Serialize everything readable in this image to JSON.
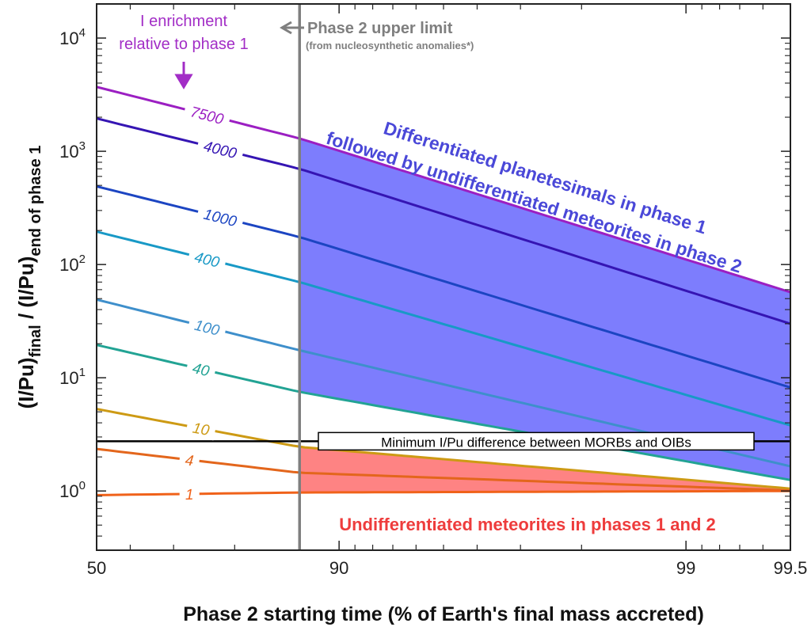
{
  "chart_data": {
    "type": "line",
    "title": "",
    "xlabel": "Phase 2 starting time (% of Earth's final mass accreted)",
    "ylabel_main": "(I/Pu)",
    "ylabel_sub1": "final",
    "ylabel_mid": " / (I/Pu)",
    "ylabel_sub2": "end of phase 1",
    "x_scale": "reciprocal (1 - x/100)",
    "xlim": [
      50,
      99.5
    ],
    "y_scale": "log",
    "ylim": [
      0.3,
      20000
    ],
    "x_ticks": [
      {
        "value": 50,
        "label": "50"
      },
      {
        "value": 90,
        "label": "90"
      },
      {
        "value": 99,
        "label": "99"
      },
      {
        "value": 99.5,
        "label": "99.5"
      }
    ],
    "x_minor_ticks": [
      60,
      70,
      80,
      91,
      92,
      93,
      94,
      95,
      96,
      97,
      98,
      99.1,
      99.2,
      99.3,
      99.4
    ],
    "y_ticks": [
      {
        "value": 1,
        "base": "10",
        "exp": "0"
      },
      {
        "value": 10,
        "base": "10",
        "exp": "1"
      },
      {
        "value": 100,
        "base": "10",
        "exp": "2"
      },
      {
        "value": 1000,
        "base": "10",
        "exp": "3"
      },
      {
        "value": 10000,
        "base": "10",
        "exp": "4"
      }
    ],
    "series": [
      {
        "name": "7500",
        "color": "#9b1fc2",
        "label_at": 76,
        "points": [
          [
            50,
            3700
          ],
          [
            87,
            1300
          ],
          [
            99.5,
            57
          ]
        ]
      },
      {
        "name": "4000",
        "color": "#3515b3",
        "label_at": 78,
        "points": [
          [
            50,
            1950
          ],
          [
            87,
            700
          ],
          [
            99.5,
            30
          ]
        ]
      },
      {
        "name": "1000",
        "color": "#1c45c2",
        "label_at": 78,
        "points": [
          [
            50,
            490
          ],
          [
            87,
            175
          ],
          [
            99.5,
            8.2
          ]
        ]
      },
      {
        "name": "400",
        "color": "#1899c6",
        "label_at": 76,
        "points": [
          [
            50,
            195
          ],
          [
            87,
            70
          ],
          [
            99.5,
            3.8
          ]
        ]
      },
      {
        "name": "100",
        "color": "#3e8fcb",
        "label_at": 76,
        "points": [
          [
            50,
            49
          ],
          [
            87,
            17.5
          ],
          [
            99.5,
            1.65
          ]
        ]
      },
      {
        "name": "40",
        "color": "#22a394",
        "label_at": 75,
        "points": [
          [
            50,
            19.5
          ],
          [
            87,
            7.5
          ],
          [
            99.5,
            1.25
          ]
        ]
      },
      {
        "name": "10",
        "color": "#cd9a14",
        "label_at": 75,
        "points": [
          [
            50,
            5.3
          ],
          [
            87,
            2.45
          ],
          [
            99.5,
            1.05
          ]
        ]
      },
      {
        "name": "4",
        "color": "#e3661c",
        "label_at": 73,
        "points": [
          [
            50,
            2.35
          ],
          [
            87,
            1.45
          ],
          [
            99.5,
            1.01
          ]
        ]
      },
      {
        "name": "1",
        "color": "#f0621a",
        "label_at": 73,
        "points": [
          [
            50,
            0.92
          ],
          [
            87,
            0.97
          ],
          [
            99.5,
            1.0
          ]
        ]
      }
    ],
    "reference_lines": [
      {
        "kind": "horizontal",
        "y": 2.75,
        "label": "Minimum I/Pu difference between MORBs and OIBs"
      },
      {
        "kind": "vertical",
        "x": 87,
        "color": "#7f7f7f",
        "label": "Phase 2 upper limit",
        "sublabel": "(from nucleosynthetic anomalies*)"
      }
    ],
    "regions": [
      {
        "between": [
          "7500",
          "40"
        ],
        "color": "#7d7dfd",
        "label_line1": "Differentiated planetesimals in phase 1",
        "label_line2": "followed by undifferentiated meteorites in phase 2",
        "label_color": "#4a48d8"
      },
      {
        "between": [
          "10",
          "1"
        ],
        "color": "#fe8383",
        "label": "Undifferentiated meteorites in phases 1 and 2",
        "label_color": "#ee3c3c"
      }
    ],
    "annotation": {
      "line1": "I enrichment",
      "line2": "relative to phase 1",
      "color": "#a22dc6"
    },
    "grid": false,
    "legend": "none"
  }
}
